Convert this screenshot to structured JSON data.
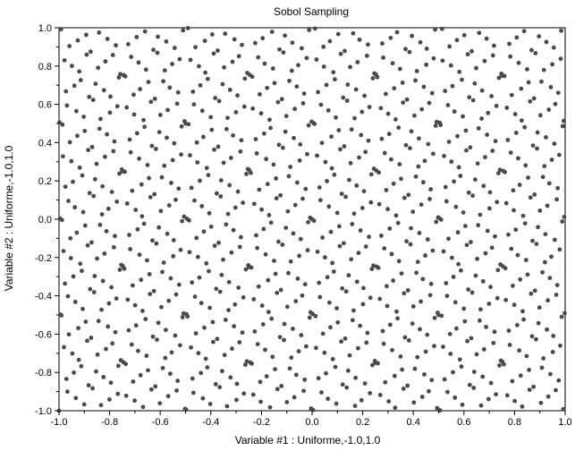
{
  "chart_data": {
    "type": "scatter",
    "title": "Sobol Sampling",
    "xlabel": "Variable #1 : Uniforme,-1.0,1.0",
    "ylabel": "Variable #2 : Uniforme,-1.0,1.0",
    "xlim": [
      -1.0,
      1.0
    ],
    "ylim": [
      -1.0,
      1.0
    ],
    "x_ticks": [
      "-1.0",
      "-0.8",
      "-0.6",
      "-0.4",
      "-0.2",
      "0.0",
      "0.2",
      "0.4",
      "0.6",
      "0.8",
      "1.0"
    ],
    "y_ticks": [
      "-1.0",
      "-0.8",
      "-0.6",
      "-0.4",
      "-0.2",
      "0.0",
      "0.2",
      "0.4",
      "0.6",
      "0.8",
      "1.0"
    ],
    "grid": false,
    "sample_count": 1024,
    "sequence": "sobol-2d",
    "point_color": "#4a4a4a",
    "series": [
      {
        "name": "",
        "x": [],
        "y": []
      }
    ]
  }
}
